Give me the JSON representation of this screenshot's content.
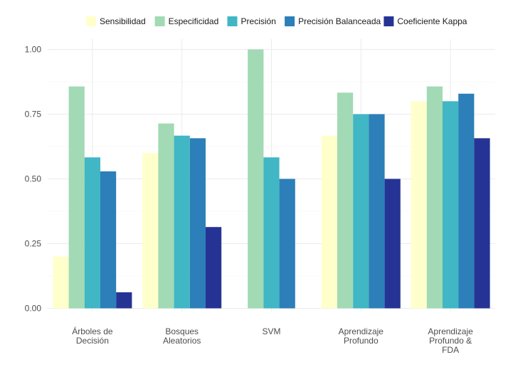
{
  "chart_data": {
    "type": "bar",
    "title": "",
    "xlabel": "",
    "ylabel": "",
    "ylim": [
      0,
      1.05
    ],
    "yticks": [
      "0.00",
      "0.25",
      "0.50",
      "0.75",
      "1.00"
    ],
    "ytick_values": [
      0,
      0.25,
      0.5,
      0.75,
      1.0
    ],
    "grid": true,
    "legend_position": "top",
    "categories": [
      [
        "Árboles de",
        "Decisión"
      ],
      [
        "Bosques",
        "Aleatorios"
      ],
      [
        "SVM"
      ],
      [
        "Aprendizaje",
        "Profundo"
      ],
      [
        "Aprendizaje",
        "Profundo &",
        "FDA"
      ]
    ],
    "series": [
      {
        "name": "Sensibilidad",
        "color": "#ffffcc",
        "values": [
          0.2,
          0.6,
          0.0,
          0.667,
          0.8
        ]
      },
      {
        "name": "Especificidad",
        "color": "#a1dab4",
        "values": [
          0.857,
          0.714,
          1.0,
          0.833,
          0.857
        ]
      },
      {
        "name": "Precisión",
        "color": "#41b6c4",
        "values": [
          0.583,
          0.667,
          0.583,
          0.75,
          0.8
        ]
      },
      {
        "name": "Precisión Balanceada",
        "color": "#2c7fb8",
        "values": [
          0.529,
          0.657,
          0.5,
          0.75,
          0.829
        ]
      },
      {
        "name": "Coeficiente Kappa",
        "color": "#253494",
        "values": [
          0.062,
          0.314,
          0.0,
          0.5,
          0.657
        ]
      }
    ]
  }
}
